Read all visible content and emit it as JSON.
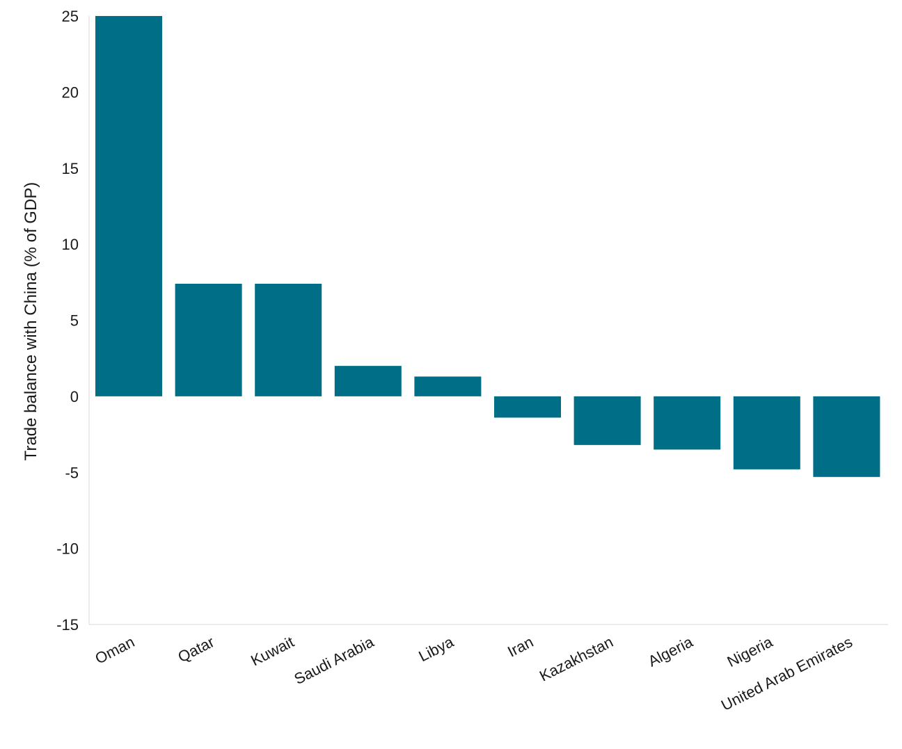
{
  "chart_data": {
    "type": "bar",
    "title": "",
    "xlabel": "",
    "ylabel": "Trade balance with China (% of GDP)",
    "categories": [
      "Oman",
      "Qatar",
      "Kuwait",
      "Saudi Arabia",
      "Libya",
      "Iran",
      "Kazakhstan",
      "Algeria",
      "Nigeria",
      "United Arab Emirates"
    ],
    "values": [
      25.0,
      7.4,
      7.4,
      2.0,
      1.3,
      -1.4,
      -3.2,
      -3.5,
      -4.8,
      -5.3
    ],
    "ylim": [
      -15,
      25
    ],
    "yticks": [
      "25",
      "20",
      "15",
      "10",
      "5",
      "0",
      "-5",
      "-10",
      "-15"
    ],
    "grid": false,
    "bar_color": "#006e87"
  }
}
